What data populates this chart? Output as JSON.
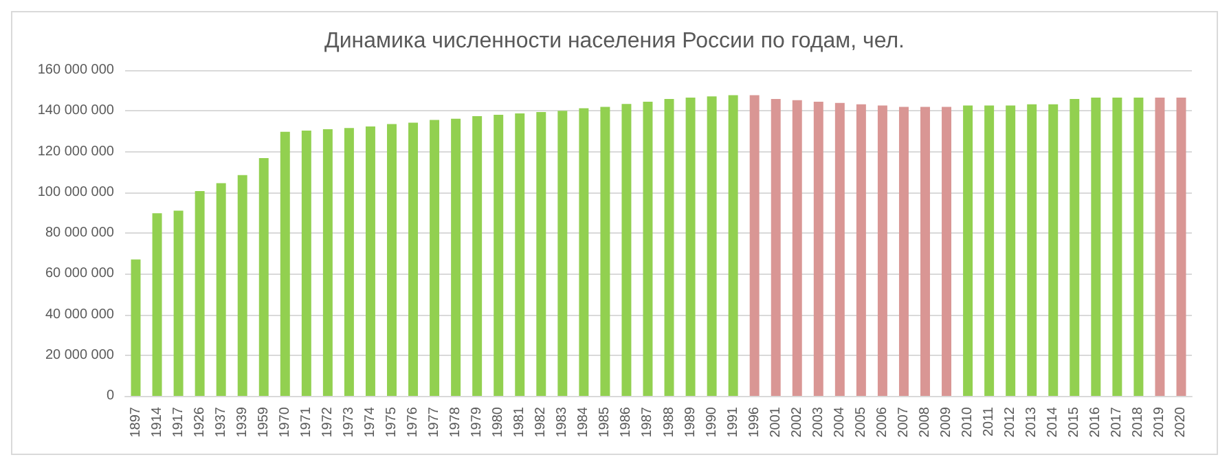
{
  "chart_data": {
    "type": "bar",
    "title": "Динамика численности населения России по годам, чел.",
    "categories": [
      "1897",
      "1914",
      "1917",
      "1926",
      "1937",
      "1939",
      "1959",
      "1970",
      "1971",
      "1972",
      "1973",
      "1974",
      "1975",
      "1976",
      "1977",
      "1978",
      "1979",
      "1980",
      "1981",
      "1982",
      "1983",
      "1984",
      "1985",
      "1986",
      "1987",
      "1988",
      "1989",
      "1990",
      "1991",
      "1996",
      "2001",
      "2002",
      "2003",
      "2004",
      "2005",
      "2006",
      "2007",
      "2008",
      "2009",
      "2010",
      "2011",
      "2012",
      "2013",
      "2014",
      "2015",
      "2016",
      "2017",
      "2018",
      "2019",
      "2020"
    ],
    "values": [
      67000000,
      89700000,
      91000000,
      100600000,
      104500000,
      108400000,
      116800000,
      129700000,
      130300000,
      131000000,
      131600000,
      132300000,
      133500000,
      134200000,
      135500000,
      136100000,
      137400000,
      138100000,
      138700000,
      139400000,
      140000000,
      141300000,
      141900000,
      143400000,
      144500000,
      145800000,
      146500000,
      147100000,
      147700000,
      147700000,
      145800000,
      145200000,
      144500000,
      143900000,
      143200000,
      142600000,
      141900000,
      141900000,
      141900000,
      142600000,
      142600000,
      142600000,
      143200000,
      143200000,
      145800000,
      146500000,
      146500000,
      146500000,
      146500000,
      146500000
    ],
    "colors": [
      "#92d050",
      "#92d050",
      "#92d050",
      "#92d050",
      "#92d050",
      "#92d050",
      "#92d050",
      "#92d050",
      "#92d050",
      "#92d050",
      "#92d050",
      "#92d050",
      "#92d050",
      "#92d050",
      "#92d050",
      "#92d050",
      "#92d050",
      "#92d050",
      "#92d050",
      "#92d050",
      "#92d050",
      "#92d050",
      "#92d050",
      "#92d050",
      "#92d050",
      "#92d050",
      "#92d050",
      "#92d050",
      "#92d050",
      "#d99694",
      "#d99694",
      "#d99694",
      "#d99694",
      "#d99694",
      "#d99694",
      "#d99694",
      "#d99694",
      "#d99694",
      "#d99694",
      "#92d050",
      "#92d050",
      "#92d050",
      "#92d050",
      "#92d050",
      "#92d050",
      "#92d050",
      "#92d050",
      "#92d050",
      "#d99694",
      "#d99694"
    ],
    "ylim": [
      0,
      160000000
    ],
    "yticks": [
      {
        "value": 0,
        "label": "0"
      },
      {
        "value": 20000000,
        "label": "20 000 000"
      },
      {
        "value": 40000000,
        "label": "40 000 000"
      },
      {
        "value": 60000000,
        "label": "60 000 000"
      },
      {
        "value": 80000000,
        "label": "80 000 000"
      },
      {
        "value": 100000000,
        "label": "100 000 000"
      },
      {
        "value": 120000000,
        "label": "120 000 000"
      },
      {
        "value": 140000000,
        "label": "140 000 000"
      },
      {
        "value": 160000000,
        "label": "160 000 000"
      }
    ],
    "grid": "y"
  }
}
